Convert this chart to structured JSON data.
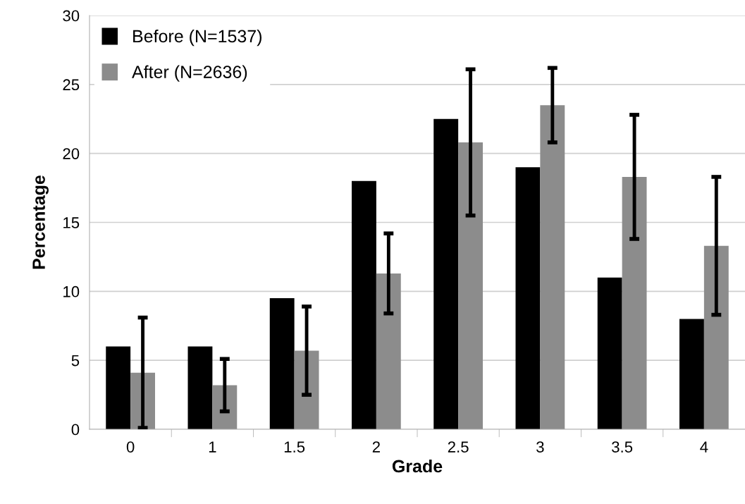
{
  "chart_data": {
    "type": "bar",
    "xlabel": "Grade",
    "ylabel": "Percentage",
    "categories": [
      "0",
      "1",
      "1.5",
      "2",
      "2.5",
      "3",
      "3.5",
      "4"
    ],
    "series": [
      {
        "name": "Before (N=1537)",
        "color": "#000000",
        "values": [
          6,
          6,
          9.5,
          18,
          22.5,
          19,
          11,
          8
        ]
      },
      {
        "name": "After (N=2636)",
        "color": "#8c8c8c",
        "values": [
          4.1,
          3.2,
          5.7,
          11.3,
          20.8,
          23.5,
          18.3,
          13.3
        ],
        "errors": [
          4.0,
          1.9,
          3.2,
          2.9,
          5.3,
          2.7,
          4.5,
          5.0
        ]
      }
    ],
    "ylim": [
      0,
      30
    ],
    "yticks": [
      0,
      5,
      10,
      15,
      20,
      25,
      30
    ],
    "grid": "y",
    "legend": "top left"
  }
}
